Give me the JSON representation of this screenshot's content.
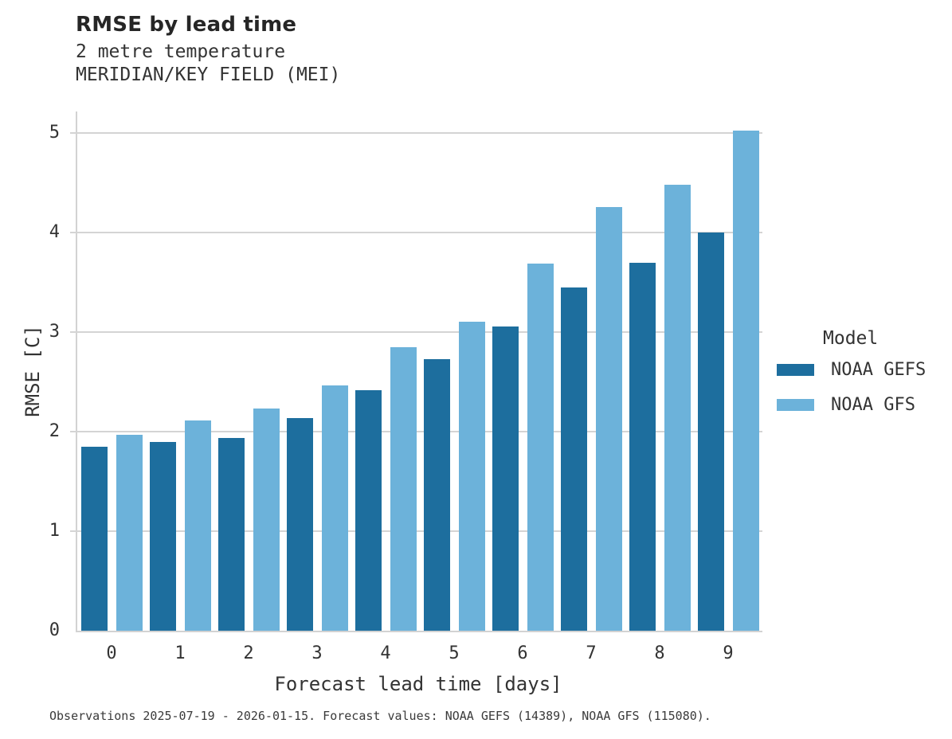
{
  "header": {
    "title": "RMSE by lead time",
    "subtitle_line1": "2 metre temperature",
    "subtitle_line2": "MERIDIAN/KEY FIELD (MEI)"
  },
  "legend": {
    "title": "Model",
    "items": [
      {
        "label": "NOAA GEFS",
        "color": "#1d6e9e"
      },
      {
        "label": "NOAA GFS",
        "color": "#6cb2da"
      }
    ]
  },
  "footer": {
    "caption": "Observations 2025-07-19 - 2026-01-15. Forecast values: NOAA GEFS (14389), NOAA GFS (115080)."
  },
  "colors": {
    "noaa_gefs": "#1d6e9e",
    "noaa_gfs": "#6cb2da",
    "gridline": "#d4d4d4",
    "text": "#333333"
  },
  "chart_data": {
    "type": "bar",
    "title": "RMSE by lead time",
    "subtitle": [
      "2 metre temperature",
      "MERIDIAN/KEY FIELD (MEI)"
    ],
    "categories": [
      "0",
      "1",
      "2",
      "3",
      "4",
      "5",
      "6",
      "7",
      "8",
      "9"
    ],
    "series": [
      {
        "name": "NOAA GEFS",
        "color": "#1d6e9e",
        "values": [
          1.85,
          1.9,
          1.94,
          2.14,
          2.42,
          2.73,
          3.06,
          3.45,
          3.7,
          4.0
        ]
      },
      {
        "name": "NOAA GFS",
        "color": "#6cb2da",
        "values": [
          1.97,
          2.11,
          2.23,
          2.47,
          2.85,
          3.11,
          3.69,
          4.26,
          4.48,
          5.03
        ]
      }
    ],
    "xlabel": "Forecast lead time [days]",
    "ylabel": "RMSE [C]",
    "ylim": [
      0,
      5.22
    ],
    "yticks": [
      0,
      1,
      2,
      3,
      4,
      5
    ],
    "grid": true,
    "legend_title": "Model",
    "legend_position": "right"
  }
}
